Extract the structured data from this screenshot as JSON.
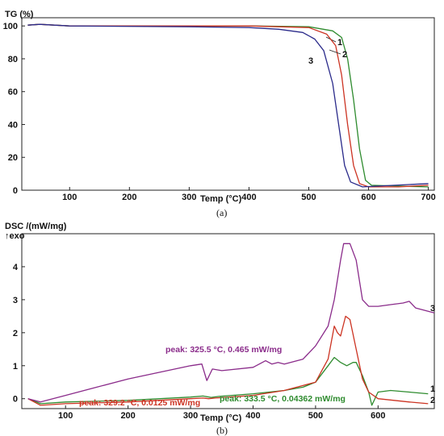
{
  "chart_data": [
    {
      "type": "line",
      "ylabel": "TG (%)",
      "xlabel": "Temp (°C)",
      "caption": "(a)",
      "xlim": [
        20,
        710
      ],
      "ylim": [
        0,
        105
      ],
      "xticks": [
        100,
        200,
        300,
        400,
        500,
        600,
        700
      ],
      "yticks": [
        0,
        20,
        40,
        60,
        80,
        100
      ],
      "grid": false,
      "series": [
        {
          "name": "1",
          "color": "#2e8b2e",
          "x": [
            30,
            50,
            100,
            300,
            400,
            500,
            540,
            555,
            565,
            575,
            585,
            595,
            605,
            650,
            700
          ],
          "y": [
            100.5,
            101,
            100,
            100,
            100,
            99.5,
            97,
            93,
            80,
            55,
            25,
            6,
            3,
            2.5,
            2
          ]
        },
        {
          "name": "2",
          "color": "#cc3322",
          "x": [
            30,
            50,
            100,
            300,
            400,
            500,
            530,
            545,
            555,
            565,
            575,
            585,
            600,
            650,
            700
          ],
          "y": [
            100.5,
            101,
            100,
            100,
            100,
            99,
            95,
            88,
            70,
            40,
            15,
            4,
            2,
            2,
            3
          ]
        },
        {
          "name": "3",
          "color": "#2a2a8a",
          "x": [
            30,
            50,
            100,
            300,
            400,
            450,
            490,
            510,
            525,
            540,
            550,
            560,
            570,
            590,
            700
          ],
          "y": [
            100.5,
            101,
            100,
            99.5,
            99,
            98,
            96,
            92,
            85,
            65,
            40,
            15,
            5,
            2,
            4
          ]
        }
      ]
    },
    {
      "type": "line",
      "ylabel": "DSC /(mW/mg)",
      "yunit_note": "↑exo",
      "xlabel": "Temp (°C)",
      "caption": "(b)",
      "xlim": [
        30,
        690
      ],
      "ylim": [
        -0.3,
        5.0
      ],
      "xticks": [
        100,
        200,
        300,
        400,
        500,
        600
      ],
      "yticks": [
        0,
        1,
        2,
        3,
        4
      ],
      "grid": false,
      "series": [
        {
          "name": "1",
          "color": "#2e8b2e",
          "x": [
            40,
            60,
            100,
            200,
            300,
            320,
            333,
            345,
            400,
            450,
            480,
            500,
            520,
            530,
            540,
            550,
            560,
            565,
            575,
            585,
            590,
            600,
            620,
            650,
            680
          ],
          "y": [
            0,
            -0.15,
            -0.1,
            -0.05,
            0.05,
            0.08,
            0.04,
            0.07,
            0.15,
            0.25,
            0.35,
            0.5,
            1.0,
            1.25,
            1.1,
            1.0,
            1.1,
            1.1,
            0.7,
            0.2,
            -0.2,
            0.2,
            0.25,
            0.2,
            0.15
          ]
        },
        {
          "name": "2",
          "color": "#cc3322",
          "x": [
            40,
            60,
            100,
            200,
            300,
            320,
            329,
            340,
            400,
            450,
            500,
            520,
            530,
            535,
            540,
            548,
            555,
            565,
            575,
            585,
            600,
            650,
            680
          ],
          "y": [
            0,
            -0.2,
            -0.15,
            -0.1,
            0.0,
            0.02,
            0.0,
            0.02,
            0.1,
            0.25,
            0.5,
            1.2,
            2.2,
            2.0,
            1.9,
            2.5,
            2.4,
            1.5,
            0.6,
            0.2,
            0.0,
            -0.1,
            -0.15
          ]
        },
        {
          "name": "3",
          "color": "#8a2b8a",
          "x": [
            40,
            60,
            100,
            150,
            200,
            250,
            300,
            318,
            326,
            335,
            350,
            400,
            420,
            430,
            440,
            450,
            480,
            500,
            520,
            530,
            540,
            545,
            555,
            565,
            575,
            585,
            600,
            620,
            640,
            650,
            660,
            690
          ],
          "y": [
            0,
            -0.1,
            0.1,
            0.35,
            0.6,
            0.8,
            1.0,
            1.05,
            0.55,
            0.9,
            0.85,
            0.95,
            1.15,
            1.05,
            1.1,
            1.05,
            1.2,
            1.6,
            2.2,
            3.0,
            4.2,
            4.7,
            4.7,
            4.2,
            3.0,
            2.8,
            2.8,
            2.85,
            2.9,
            2.95,
            2.75,
            2.6
          ]
        }
      ],
      "annotations": [
        {
          "text": "peak: 325.5 °C, 0.465 mW/mg",
          "color": "#8a2b8a"
        },
        {
          "text": "peak: 329.2 °C, 0.0125 mW/mg",
          "color": "#cc3322"
        },
        {
          "text": "peak: 333.5 °C, 0.04362 mW/mg",
          "color": "#2e8b2e"
        }
      ]
    }
  ]
}
